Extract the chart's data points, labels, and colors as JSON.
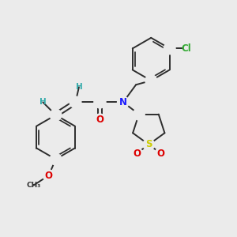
{
  "background_color": "#ebebeb",
  "bond_color": "#2d2d2d",
  "bond_width": 1.4,
  "atom_colors": {
    "N": "#1a1aff",
    "O": "#dd0000",
    "S": "#cccc00",
    "Cl": "#33aa33",
    "H": "#33aaaa",
    "C": "#2d2d2d"
  },
  "figsize": [
    3.0,
    3.0
  ],
  "dpi": 100,
  "xlim": [
    0,
    10
  ],
  "ylim": [
    0,
    10
  ]
}
